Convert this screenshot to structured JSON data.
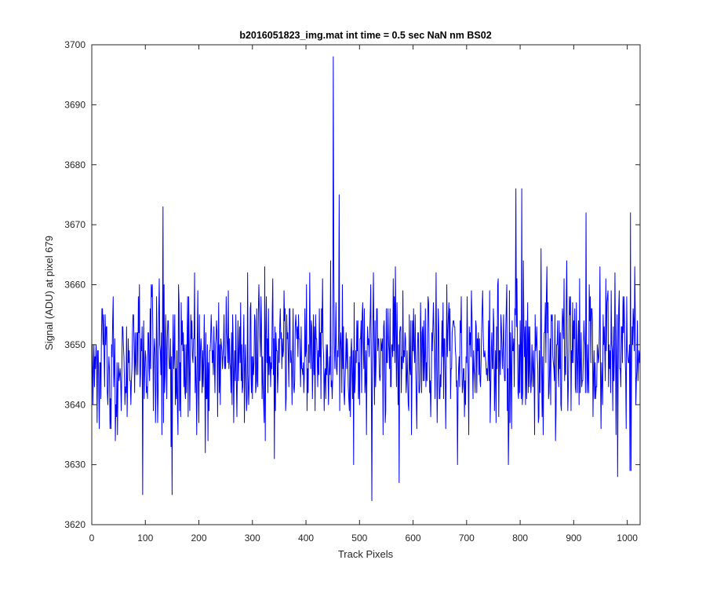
{
  "chart_data": {
    "type": "line",
    "title": "b2016051823_img.mat int time = 0.5 sec  NaN nm BS02",
    "xlabel": "Track Pixels",
    "ylabel": "Signal (ADU) at pixel 679",
    "xlim": [
      0,
      1024
    ],
    "ylim": [
      3620,
      3700
    ],
    "xticks": [
      0,
      100,
      200,
      300,
      400,
      500,
      600,
      700,
      800,
      900,
      1000
    ],
    "yticks": [
      3620,
      3630,
      3640,
      3650,
      3660,
      3670,
      3680,
      3690,
      3700
    ],
    "grid": false,
    "legend": "none",
    "series": [
      {
        "color": "#0000ff",
        "x_start": 1,
        "x_step": 1,
        "notable_points": [
          {
            "x": 451,
            "y": 3698
          },
          {
            "x": 133,
            "y": 3673
          },
          {
            "x": 462,
            "y": 3675
          },
          {
            "x": 792,
            "y": 3676
          },
          {
            "x": 803,
            "y": 3676
          },
          {
            "x": 923,
            "y": 3672
          },
          {
            "x": 1006,
            "y": 3672
          },
          {
            "x": 95,
            "y": 3625
          },
          {
            "x": 150,
            "y": 3625
          },
          {
            "x": 523,
            "y": 3624
          }
        ],
        "baseline_mean": 3648,
        "noise_sd": 6
      }
    ]
  }
}
